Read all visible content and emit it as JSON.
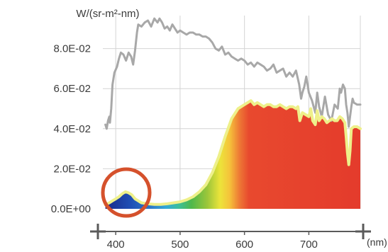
{
  "chart_data": {
    "type": "area",
    "ylabel": "W/(sr-m²-nm)",
    "xunit": "(nm)",
    "x_ticks": [
      {
        "value": 400,
        "label": "400"
      },
      {
        "value": 500,
        "label": "500"
      },
      {
        "value": 600,
        "label": "600"
      },
      {
        "value": 700,
        "label": "700"
      }
    ],
    "y_ticks": [
      {
        "value": 0.0,
        "label": "0.0E+00"
      },
      {
        "value": 0.02,
        "label": "2.0E-02"
      },
      {
        "value": 0.04,
        "label": "4.0E-02"
      },
      {
        "value": 0.06,
        "label": "6.0E-02"
      },
      {
        "value": 0.08,
        "label": "8.0E-02"
      }
    ],
    "xlim": [
      380,
      780
    ],
    "ylim": [
      0,
      0.1
    ],
    "grid": true,
    "series": [
      {
        "color": "#a8a8a8",
        "x": [
          384,
          386,
          388,
          390,
          391,
          393,
          395,
          398,
          402,
          405,
          408,
          412,
          416,
          420,
          424,
          427,
          430,
          433,
          435,
          440,
          445,
          450,
          455,
          460,
          465,
          468,
          472,
          476,
          480,
          484,
          488,
          492,
          496,
          500,
          505,
          510,
          515,
          520,
          525,
          530,
          535,
          540,
          545,
          550,
          555,
          560,
          565,
          570,
          575,
          580,
          585,
          590,
          595,
          600,
          605,
          610,
          615,
          620,
          625,
          630,
          635,
          640,
          645,
          650,
          655,
          660,
          665,
          670,
          675,
          680,
          685,
          688,
          690,
          693,
          696,
          700,
          705,
          710,
          713,
          716,
          720,
          725,
          730,
          735,
          740,
          745,
          748,
          750,
          753,
          756,
          758,
          760,
          762,
          764,
          766,
          768,
          770,
          775,
          780
        ],
        "values": [
          0.042,
          0.04,
          0.044,
          0.046,
          0.043,
          0.05,
          0.062,
          0.068,
          0.071,
          0.075,
          0.078,
          0.077,
          0.074,
          0.078,
          0.076,
          0.072,
          0.079,
          0.088,
          0.092,
          0.091,
          0.093,
          0.094,
          0.091,
          0.095,
          0.093,
          0.095,
          0.093,
          0.09,
          0.091,
          0.089,
          0.092,
          0.09,
          0.088,
          0.089,
          0.088,
          0.087,
          0.088,
          0.088,
          0.087,
          0.087,
          0.086,
          0.086,
          0.085,
          0.083,
          0.08,
          0.079,
          0.081,
          0.077,
          0.078,
          0.076,
          0.075,
          0.074,
          0.075,
          0.074,
          0.072,
          0.073,
          0.071,
          0.073,
          0.072,
          0.071,
          0.069,
          0.07,
          0.072,
          0.068,
          0.069,
          0.07,
          0.066,
          0.068,
          0.066,
          0.069,
          0.062,
          0.055,
          0.058,
          0.061,
          0.066,
          0.058,
          0.054,
          0.048,
          0.058,
          0.051,
          0.046,
          0.056,
          0.047,
          0.044,
          0.052,
          0.05,
          0.06,
          0.058,
          0.062,
          0.06,
          0.052,
          0.048,
          0.041,
          0.046,
          0.051,
          0.055,
          0.053,
          0.052,
          0.052
        ]
      },
      {
        "color": "#eef08a",
        "x": [
          384,
          390,
          395,
          400,
          405,
          410,
          415,
          420,
          425,
          430,
          435,
          440,
          450,
          460,
          470,
          480,
          490,
          500,
          510,
          520,
          530,
          540,
          550,
          560,
          570,
          580,
          590,
          600,
          605,
          610,
          615,
          620,
          625,
          630,
          635,
          640,
          645,
          650,
          655,
          660,
          665,
          670,
          675,
          680,
          683,
          686,
          690,
          695,
          700,
          703,
          706,
          710,
          713,
          716,
          720,
          724,
          728,
          732,
          736,
          740,
          744,
          748,
          752,
          756,
          758,
          760,
          762,
          764,
          766,
          770,
          775,
          780
        ],
        "values": [
          0.002,
          0.003,
          0.004,
          0.005,
          0.006,
          0.0075,
          0.0085,
          0.008,
          0.007,
          0.005,
          0.004,
          0.003,
          0.0025,
          0.0022,
          0.0022,
          0.0025,
          0.003,
          0.0035,
          0.0045,
          0.006,
          0.0085,
          0.012,
          0.018,
          0.026,
          0.036,
          0.045,
          0.05,
          0.052,
          0.053,
          0.054,
          0.052,
          0.053,
          0.052,
          0.051,
          0.052,
          0.052,
          0.051,
          0.051,
          0.052,
          0.051,
          0.05,
          0.051,
          0.051,
          0.05,
          0.051,
          0.044,
          0.048,
          0.047,
          0.046,
          0.05,
          0.044,
          0.042,
          0.049,
          0.044,
          0.046,
          0.045,
          0.043,
          0.044,
          0.045,
          0.044,
          0.044,
          0.046,
          0.045,
          0.043,
          0.036,
          0.028,
          0.022,
          0.029,
          0.04,
          0.041,
          0.041,
          0.04
        ]
      }
    ]
  }
}
